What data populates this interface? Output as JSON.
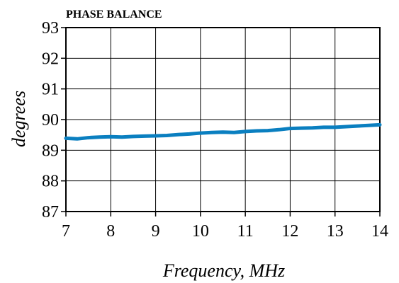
{
  "chart_data": {
    "type": "line",
    "title": "PHASE BALANCE",
    "xlabel": "Frequency, MHz",
    "ylabel": "degrees",
    "xlim": [
      7,
      14
    ],
    "ylim": [
      87,
      93
    ],
    "x_ticks": [
      "7",
      "8",
      "9",
      "10",
      "11",
      "12",
      "13",
      "14"
    ],
    "y_ticks": [
      "87",
      "88",
      "89",
      "90",
      "91",
      "92",
      "93"
    ],
    "grid": true,
    "series_color": "#0a7fc0",
    "series": [
      {
        "x": [
          7.0,
          7.25,
          7.5,
          7.75,
          8.0,
          8.25,
          8.5,
          8.75,
          9.0,
          9.25,
          9.5,
          9.75,
          10.0,
          10.25,
          10.5,
          10.75,
          11.0,
          11.25,
          11.5,
          11.75,
          12.0,
          12.25,
          12.5,
          12.75,
          13.0,
          13.25,
          13.5,
          13.75,
          14.0
        ],
        "values": [
          89.39,
          89.37,
          89.41,
          89.43,
          89.44,
          89.43,
          89.45,
          89.46,
          89.47,
          89.48,
          89.51,
          89.53,
          89.56,
          89.58,
          89.59,
          89.58,
          89.61,
          89.63,
          89.64,
          89.67,
          89.71,
          89.72,
          89.73,
          89.75,
          89.75,
          89.77,
          89.79,
          89.81,
          89.83
        ]
      }
    ]
  }
}
